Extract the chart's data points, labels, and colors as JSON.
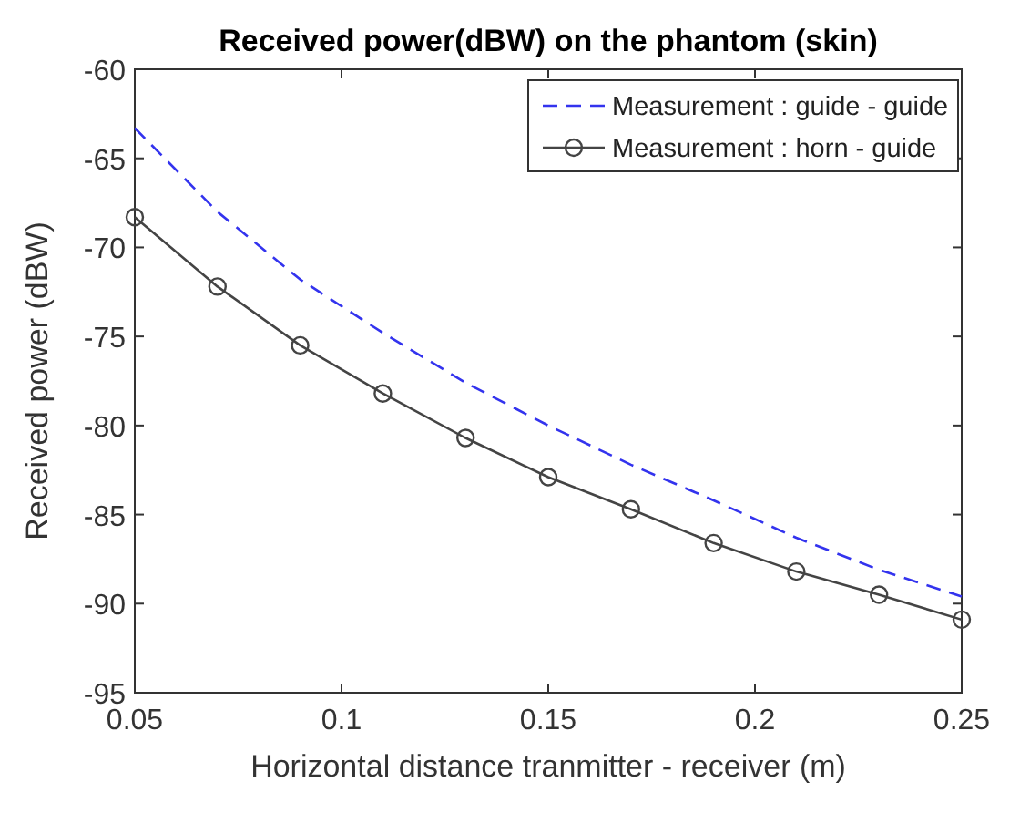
{
  "chart_data": {
    "type": "line",
    "title": "Received power(dBW) on the phantom (skin)",
    "xlabel": "Horizontal distance tranmitter - receiver (m)",
    "ylabel": "Received power (dBW)",
    "x": [
      0.05,
      0.07,
      0.09,
      0.11,
      0.13,
      0.15,
      0.17,
      0.19,
      0.21,
      0.23,
      0.25
    ],
    "series": [
      {
        "name": "Measurement : guide - guide",
        "color": "#3333ee",
        "line_style": "dashed",
        "marker": "none",
        "values": [
          -63.3,
          -68.0,
          -71.8,
          -74.8,
          -77.6,
          -80.0,
          -82.2,
          -84.2,
          -86.3,
          -88.1,
          -89.6
        ]
      },
      {
        "name": "Measurement : horn - guide",
        "color": "#444444",
        "line_style": "solid",
        "marker": "circle",
        "values": [
          -68.3,
          -72.2,
          -75.5,
          -78.2,
          -80.7,
          -82.9,
          -84.7,
          -86.6,
          -88.2,
          -89.5,
          -90.9
        ]
      }
    ],
    "xlim": [
      0.05,
      0.25
    ],
    "xticks": [
      0.05,
      0.1,
      0.15,
      0.2,
      0.25
    ],
    "ylim": [
      -95,
      -60
    ],
    "yticks": [
      -95,
      -90,
      -85,
      -80,
      -75,
      -70,
      -65,
      -60
    ],
    "grid": false,
    "legend": "top right"
  }
}
